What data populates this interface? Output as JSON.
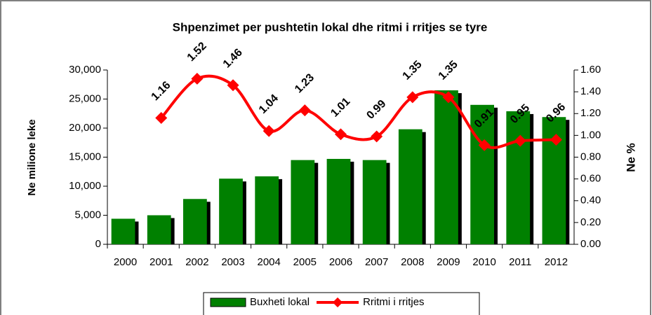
{
  "chart_data": {
    "type": "bar",
    "title": "Shpenzimet per pushtetin lokal dhe ritmi i rritjes se tyre",
    "ylabel": "Ne milione leke",
    "y2label": "Ne %",
    "categories": [
      "2000",
      "2001",
      "2002",
      "2003",
      "2004",
      "2005",
      "2006",
      "2007",
      "2008",
      "2009",
      "2010",
      "2011",
      "2012"
    ],
    "series": [
      {
        "name": "Buxheti lokal",
        "type": "bar",
        "color": "#008000",
        "values": [
          4400,
          5000,
          7800,
          11300,
          11700,
          14500,
          14700,
          14500,
          19800,
          26500,
          24000,
          22900,
          21900
        ]
      },
      {
        "name": "Rritmi i rritjes",
        "type": "line",
        "axis": "y2",
        "color": "#ff0000",
        "values": [
          null,
          1.16,
          1.52,
          1.46,
          1.04,
          1.23,
          1.01,
          0.99,
          1.35,
          1.35,
          0.91,
          0.95,
          0.96
        ]
      }
    ],
    "ylim": [
      0,
      30000
    ],
    "yticks": [
      0,
      {
        "value": 5000,
        "label": "5,000"
      },
      {
        "value": 10000,
        "label": "10,000"
      },
      {
        "value": 15000,
        "label": "15,000"
      },
      {
        "value": 20000,
        "label": "20,000"
      },
      {
        "value": 25000,
        "label": "25,000"
      },
      {
        "value": 30000,
        "label": "30,000"
      }
    ],
    "y2lim": [
      0,
      1.6
    ],
    "y2ticks": [
      {
        "value": 0,
        "label": "0.00"
      },
      {
        "value": 0.2,
        "label": "0.20"
      },
      {
        "value": 0.4,
        "label": "0.40"
      },
      {
        "value": 0.6,
        "label": "0.60"
      },
      {
        "value": 0.8,
        "label": "0.80"
      },
      {
        "value": 1.0,
        "label": "1.00"
      },
      {
        "value": 1.2,
        "label": "1.20"
      },
      {
        "value": 1.4,
        "label": "1.40"
      },
      {
        "value": 1.6,
        "label": "1.60"
      }
    ],
    "legend": "bottom"
  }
}
